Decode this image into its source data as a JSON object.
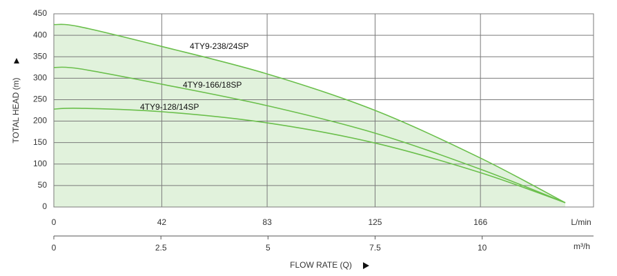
{
  "chart_data": {
    "type": "line",
    "y_label": "TOTAL HEAD (m)",
    "x_label": "FLOW RATE (Q)",
    "x_unit": "L/min",
    "x2_unit": "m³/h",
    "x": [
      0,
      10,
      42,
      83,
      125,
      166,
      199
    ],
    "series": [
      {
        "name": "4TY9-238/24SP",
        "color": "#6abf4b",
        "values": [
          425,
          420,
          374,
          310,
          225,
          114,
          10
        ]
      },
      {
        "name": "4TY9-166/18SP",
        "color": "#6abf4b",
        "values": [
          325,
          322,
          286,
          236,
          172,
          88,
          10
        ]
      },
      {
        "name": "4TY9-128/14SP",
        "color": "#6abf4b",
        "values": [
          228,
          230,
          222,
          196,
          149,
          80,
          10
        ]
      }
    ],
    "fill_color": "#e1f2dc",
    "xlim": [
      0,
      210
    ],
    "xticks": [
      0,
      42,
      83,
      125,
      166
    ],
    "x2lim": [
      0,
      12.6
    ],
    "x2ticks": [
      0,
      2.5,
      5,
      7.5,
      10
    ],
    "ylim": [
      0,
      450
    ],
    "yticks": [
      0,
      50,
      100,
      150,
      200,
      250,
      300,
      350,
      400,
      450
    ],
    "grid": true
  }
}
